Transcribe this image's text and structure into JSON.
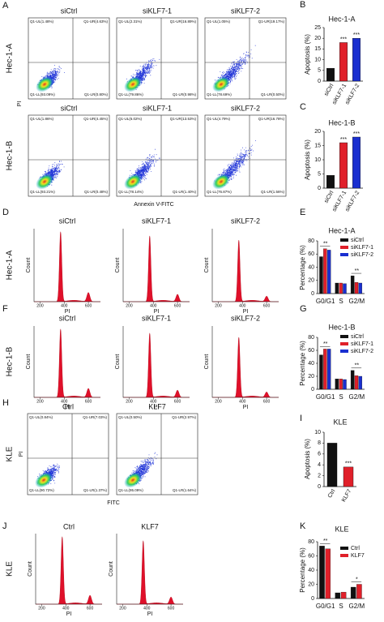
{
  "flow": [
    {
      "label": "A",
      "columns": [
        "siCtrl",
        "siKLF7-1",
        "siKLF7-2"
      ],
      "ylabel": "PI",
      "xlabel": "Annexin V-FITC",
      "rows": [
        {
          "name": "Hec-1-A",
          "quadrants": [
            [
              "Q1-UL(1.48%)",
              "Q1-UR(4.63%)",
              "Q1-LL(93.09%)",
              "Q1-LR(0.80%)"
            ],
            [
              "Q1-UL(2.31%)",
              "Q1-UR(16.89%)",
              "Q1-LL(79.86%)",
              "Q1-LR(0.98%)"
            ],
            [
              "Q1-UL(1.05%)",
              "Q1-UR(19.17%)",
              "Q1-LL(78.69%)",
              "Q1-LR(0.50%)"
            ]
          ]
        },
        {
          "name": "Hec-1-B",
          "quadrants": [
            [
              "Q1-UL(1.86%)",
              "Q1-UR(4.45%)",
              "Q1-LL(93.21%)",
              "Q1-LR(0.48%)"
            ],
            [
              "Q1-UL(6.02%)",
              "Q1-UR(13.53%)",
              "Q1-LL(78.14%)",
              "Q1-LR(1.40%)"
            ],
            [
              "Q1-UL(4.79%)",
              "Q1-UR(16.78%)",
              "Q1-LL(76.87%)",
              "Q1-LR(1.56%)"
            ]
          ]
        }
      ]
    },
    {
      "label": "H",
      "columns": [
        "Ctrl",
        "KLF7"
      ],
      "ylabel": "PI",
      "xlabel": "FITC",
      "rows": [
        {
          "name": "KLE",
          "quadrants": [
            [
              "Q1-UL(0.84%)",
              "Q1-UR(7.03%)",
              "Q1-LL(90.72%)",
              "Q1-LR(1.37%)"
            ],
            [
              "Q1-UL(0.50%)",
              "Q1-UR(2.97%)",
              "Q1-LL(95.09%)",
              "Q1-LR(1.64%)"
            ]
          ]
        }
      ]
    }
  ],
  "cycles": [
    {
      "label": "D",
      "row": "Hec-1-A",
      "columns": [
        "siCtrl",
        "siKLF7-1",
        "siKLF7-2"
      ],
      "xlim": [
        150,
        700
      ],
      "xticks": [
        200,
        400,
        600
      ],
      "xlabel": "PI",
      "ylabel": "Count"
    },
    {
      "label": "F",
      "row": "Hec-1-B",
      "columns": [
        "siCtrl",
        "siKLF7-1",
        "siKLF7-2"
      ],
      "xlim": [
        150,
        700
      ],
      "xticks": [
        200,
        400,
        600
      ],
      "xlabel": "PI",
      "ylabel": "Count"
    },
    {
      "label": "J",
      "row": "KLE",
      "columns": [
        "Ctrl",
        "KLF7"
      ],
      "xlim": [
        150,
        700
      ],
      "xticks": [
        200,
        400,
        600
      ],
      "xlabel": "PI",
      "ylabel": "Count"
    }
  ],
  "bars": [
    {
      "type": "bar",
      "label": "B",
      "title": "Hec-1-A",
      "ylabel": "Apoptosis (%)",
      "categories": [
        "siCtrl",
        "siKLF7-1",
        "siKLF7-2"
      ],
      "values": [
        6,
        18,
        20
      ],
      "colors": [
        "#111111",
        "#e0202a",
        "#1a2fd0"
      ],
      "ylim": [
        0,
        25
      ],
      "yticks": [
        0,
        5,
        10,
        15,
        20,
        25
      ],
      "annotations": [
        {
          "text": "***",
          "category": "siKLF7-1"
        },
        {
          "text": "***",
          "category": "siKLF7-2"
        }
      ]
    },
    {
      "type": "bar",
      "label": "C",
      "title": "Hec-1-B",
      "ylabel": "Apoptosis (%)",
      "categories": [
        "siCtrl",
        "siKLF7-1",
        "siKLF7-2"
      ],
      "values": [
        4.5,
        16,
        18
      ],
      "colors": [
        "#111111",
        "#e0202a",
        "#1a2fd0"
      ],
      "ylim": [
        0,
        20
      ],
      "yticks": [
        0,
        5,
        10,
        15,
        20
      ],
      "annotations": [
        {
          "text": "***",
          "category": "siKLF7-1"
        },
        {
          "text": "***",
          "category": "siKLF7-2"
        }
      ]
    },
    {
      "type": "grouped",
      "label": "E",
      "title": "Hec-1-A",
      "ylabel": "Percentage (%)",
      "categories": [
        "G0/G1",
        "S",
        "G2/M"
      ],
      "series": [
        {
          "name": "siCtrl",
          "color": "#111111",
          "values": [
            56,
            16,
            27
          ]
        },
        {
          "name": "siKLF7-1",
          "color": "#e0202a",
          "values": [
            68,
            16,
            17
          ]
        },
        {
          "name": "siKLF7-2",
          "color": "#1a2fd0",
          "values": [
            66,
            15,
            16
          ]
        }
      ],
      "ylim": [
        0,
        80
      ],
      "yticks": [
        0,
        20,
        40,
        60,
        80
      ],
      "annotations": [
        {
          "text": "**",
          "category": "G0/G1"
        },
        {
          "text": "**",
          "category": "G2/M"
        }
      ]
    },
    {
      "type": "grouped",
      "label": "G",
      "title": "Hec-1-B",
      "ylabel": "Percentage (%)",
      "categories": [
        "G0/G1",
        "S",
        "G2/M"
      ],
      "series": [
        {
          "name": "siCtrl",
          "color": "#111111",
          "values": [
            53,
            16,
            29
          ]
        },
        {
          "name": "siKLF7-1",
          "color": "#e0202a",
          "values": [
            62,
            16,
            21
          ]
        },
        {
          "name": "siKLF7-2",
          "color": "#1a2fd0",
          "values": [
            62,
            15,
            20
          ]
        }
      ],
      "ylim": [
        0,
        80
      ],
      "yticks": [
        0,
        20,
        40,
        60,
        80
      ],
      "annotations": [
        {
          "text": "**",
          "category": "G0/G1"
        },
        {
          "text": "**",
          "category": "G2/M"
        }
      ]
    },
    {
      "type": "bar",
      "label": "I",
      "title": "KLE",
      "ylabel": "Apoptosis (%)",
      "categories": [
        "Ctrl",
        "KLF7"
      ],
      "values": [
        8,
        3.6
      ],
      "colors": [
        "#111111",
        "#e0202a"
      ],
      "ylim": [
        0,
        10
      ],
      "yticks": [
        0,
        2,
        4,
        6,
        8,
        10
      ],
      "annotations": [
        {
          "text": "***",
          "category": "KLF7"
        }
      ]
    },
    {
      "type": "grouped",
      "label": "K",
      "title": "KLE",
      "ylabel": "Percentage (%)",
      "categories": [
        "G0/G1",
        "S",
        "G2/M"
      ],
      "series": [
        {
          "name": "Ctrl",
          "color": "#111111",
          "values": [
            74,
            8,
            16
          ]
        },
        {
          "name": "KLF7",
          "color": "#e0202a",
          "values": [
            70,
            9,
            20
          ]
        }
      ],
      "ylim": [
        0,
        80
      ],
      "yticks": [
        0,
        20,
        40,
        60,
        80
      ],
      "annotations": [
        {
          "text": "**",
          "category": "G0/G1"
        },
        {
          "text": "*",
          "category": "G2/M"
        }
      ]
    }
  ]
}
